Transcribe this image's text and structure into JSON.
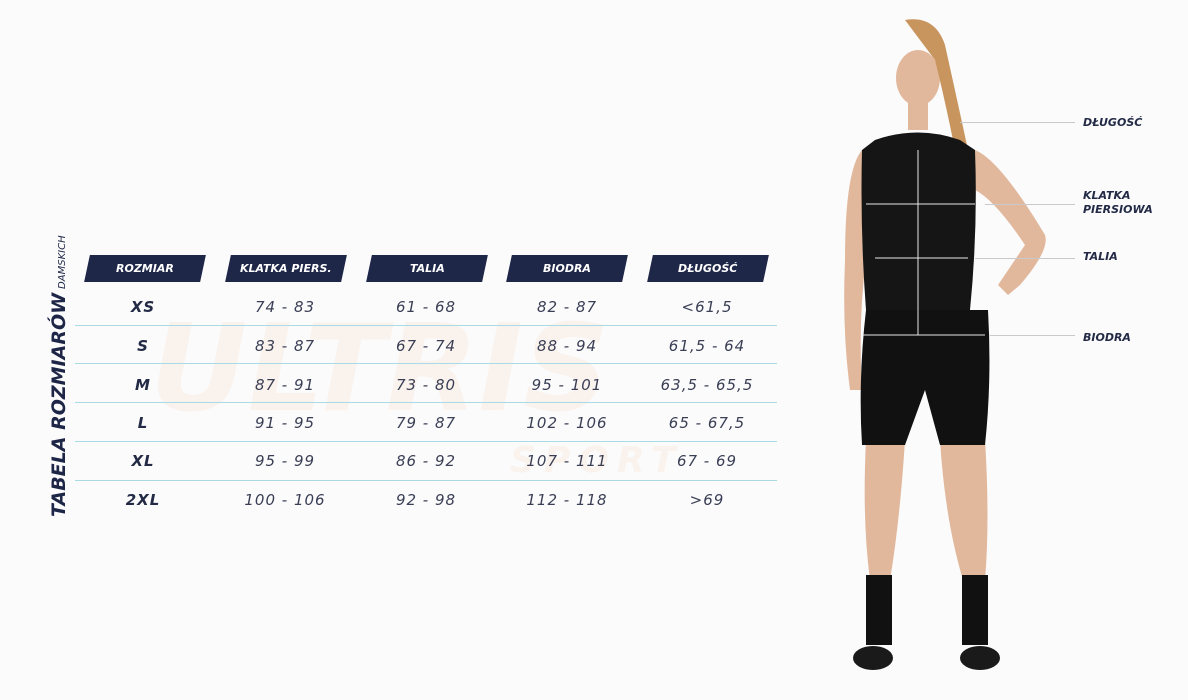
{
  "title": {
    "main": "TABELA ROZMIARÓW",
    "sub": "DAMSKICH"
  },
  "watermark": {
    "brand": "ULTRIS",
    "sub": "SPORT"
  },
  "table": {
    "headers": [
      "ROZMIAR",
      "KLATKA PIERS.",
      "TALIA",
      "BIODRA",
      "DŁUGOŚĆ"
    ],
    "rows": [
      [
        "XS",
        "74 - 83",
        "61 - 68",
        "82 - 87",
        "<61,5"
      ],
      [
        "S",
        "83 - 87",
        "67 - 74",
        "88 - 94",
        "61,5 - 64"
      ],
      [
        "M",
        "87 - 91",
        "73 - 80",
        "95 - 101",
        "63,5 - 65,5"
      ],
      [
        "L",
        "91 - 95",
        "79 - 87",
        "102 - 106",
        "65 - 67,5"
      ],
      [
        "XL",
        "95 - 99",
        "86 - 92",
        "107 - 111",
        "67 - 69"
      ],
      [
        "2XL",
        "100 - 106",
        "92 - 98",
        "112 - 118",
        ">69"
      ]
    ]
  },
  "measurements": {
    "length": "DŁUGOŚĆ",
    "chest_line1": "KLATKA",
    "chest_line2": "PIERSIOWA",
    "waist": "TALIA",
    "hips": "BIODRA"
  },
  "colors": {
    "header_bg": "#1f2749",
    "row_rule": "#a8dbe6",
    "text": "#232a45"
  }
}
